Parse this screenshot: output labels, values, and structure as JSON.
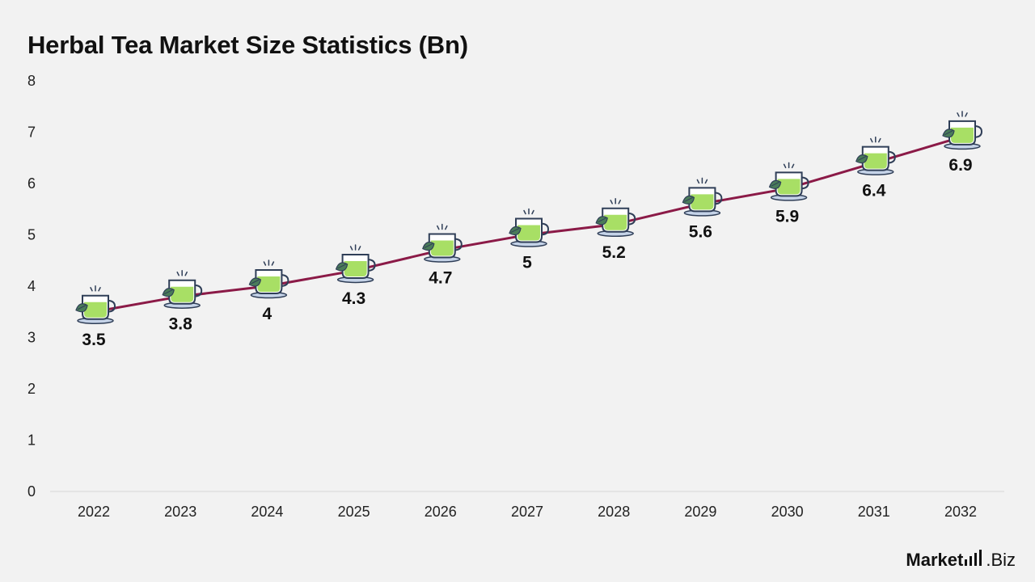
{
  "chart_data": {
    "type": "line",
    "title": "Herbal Tea Market Size Statistics (Bn)",
    "xlabel": "",
    "ylabel": "",
    "categories": [
      "2022",
      "2023",
      "2024",
      "2025",
      "2026",
      "2027",
      "2028",
      "2029",
      "2030",
      "2031",
      "2032"
    ],
    "values": [
      3.5,
      3.8,
      4,
      4.3,
      4.7,
      5,
      5.2,
      5.6,
      5.9,
      6.4,
      6.9
    ],
    "value_labels": [
      "3.5",
      "3.8",
      "4",
      "4.3",
      "4.7",
      "5",
      "5.2",
      "5.6",
      "5.9",
      "6.4",
      "6.9"
    ],
    "ylim": [
      0,
      8
    ],
    "yticks": [
      "0",
      "1",
      "2",
      "3",
      "4",
      "5",
      "6",
      "7",
      "8"
    ],
    "grid": false,
    "marker": "tea-cup-icon",
    "colors": {
      "line": "#8b1a47",
      "tea": "#a8df65",
      "leaf": "#4a7c59",
      "cup_outline": "#2f3e57",
      "saucer": "#c5d3e8"
    }
  },
  "brand": {
    "strong": "Market",
    "light": "Biz"
  }
}
